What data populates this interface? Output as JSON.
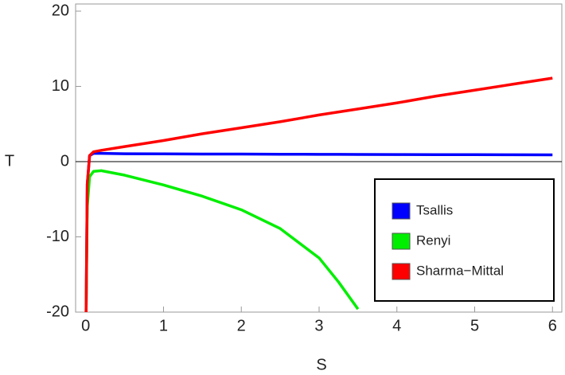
{
  "chart_data": {
    "type": "line",
    "x_label": "S",
    "y_label": "T",
    "x": [
      0.005,
      0.02,
      0.05,
      0.1,
      0.2,
      0.5,
      1,
      1.5,
      2,
      2.5,
      3,
      3.25,
      3.5,
      4,
      4.5,
      5,
      5.5,
      6
    ],
    "series": [
      {
        "name": "Tsallis",
        "color": "#0000ff",
        "values": [
          -20,
          -3,
          0.8,
          1.1,
          1.1,
          1.05,
          1.03,
          1.01,
          1.0,
          0.98,
          0.97,
          0.96,
          0.95,
          0.94,
          0.93,
          0.92,
          0.91,
          0.9
        ]
      },
      {
        "name": "Renyi",
        "color": "#00ee00",
        "values": [
          -20,
          -6,
          -2,
          -1.3,
          -1.2,
          -1.8,
          -3.1,
          -4.6,
          -6.4,
          -8.9,
          -12.8,
          -16,
          -19.6,
          null,
          null,
          null,
          null,
          null
        ]
      },
      {
        "name": "Sharma−Mittal",
        "color": "#ff0000",
        "values": [
          -20,
          -3,
          0.8,
          1.3,
          1.5,
          2.0,
          2.8,
          3.7,
          4.5,
          5.3,
          6.2,
          6.6,
          7.0,
          7.8,
          8.7,
          9.5,
          10.3,
          11.1
        ]
      }
    ],
    "xlim": [
      -0.13,
      6.12
    ],
    "ylim": [
      -20,
      20
    ],
    "xticks": [
      0,
      1,
      2,
      3,
      4,
      5,
      6
    ],
    "yticks": [
      -20,
      -10,
      0,
      10,
      20
    ],
    "legend": "lower right"
  }
}
